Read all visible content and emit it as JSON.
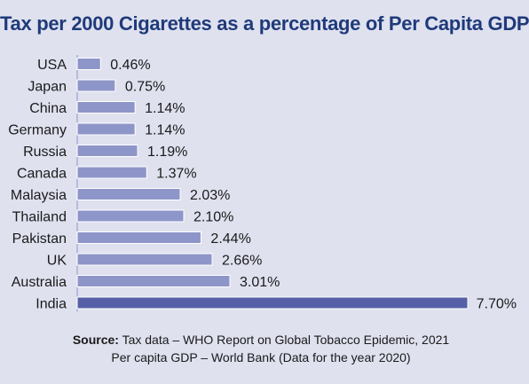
{
  "chart_data": {
    "type": "bar",
    "orientation": "horizontal",
    "title": "Tax per 2000 Cigarettes as a percentage of Per Capita GDP",
    "categories": [
      "USA",
      "Japan",
      "China",
      "Germany",
      "Russia",
      "Canada",
      "Malaysia",
      "Thailand",
      "Pakistan",
      "UK",
      "Australia",
      "India"
    ],
    "values": [
      0.46,
      0.75,
      1.14,
      1.14,
      1.19,
      1.37,
      2.03,
      2.1,
      2.44,
      2.66,
      3.01,
      7.7
    ],
    "value_labels": [
      "0.46%",
      "0.75%",
      "1.14%",
      "1.14%",
      "1.19%",
      "1.37%",
      "2.03%",
      "2.10%",
      "2.44%",
      "2.66%",
      "3.01%",
      "7.70%"
    ],
    "xlim": [
      0,
      7.7
    ],
    "grid": false,
    "legend": "none",
    "colors": {
      "bar": "#8e95c8",
      "bar_highlight": "#5660a6",
      "background": "#dfe1ef",
      "title": "#1f3a7a"
    }
  },
  "source": {
    "label": "Source:",
    "line1": "Tax data – WHO Report on Global Tobacco Epidemic, 2021",
    "line2": "Per capita GDP – World Bank (Data for the year 2020)"
  }
}
